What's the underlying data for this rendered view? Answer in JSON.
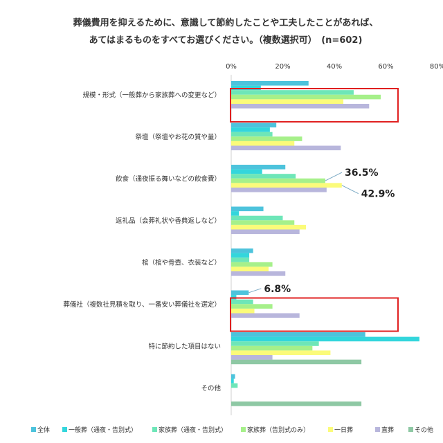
{
  "chart_data": {
    "type": "bar",
    "orientation": "horizontal",
    "title_lines": [
      "葬儀費用を抑えるために、意識して節約したことや工夫したことがあれば、",
      "あてはまるものをすべてお選びください。（複数選択可）　(n=602)"
    ],
    "xlim": [
      0,
      80
    ],
    "xticks": [
      "0%",
      "20%",
      "40%",
      "60%",
      "80%"
    ],
    "grid": false,
    "legend_position": "bottom",
    "categories": [
      "規模・形式（一般葬から家族葬への変更など）",
      "祭壇（祭壇やお花の質や量）",
      "飲食（通夜振る舞いなどの飲食費）",
      "返礼品（会葬礼状や香典返しなど）",
      "棺（棺や骨壺、衣装など）",
      "葬儀社（複数社見積を取り、一番安い葬儀社を選定）",
      "特に節約した項目はない",
      "その他"
    ],
    "series": [
      {
        "name": "全体",
        "color": "#4dc3dc",
        "values": [
          30.0,
          17.5,
          21.0,
          12.5,
          8.5,
          6.8,
          52.0,
          1.5
        ]
      },
      {
        "name": "一般葬（通夜・告別式）",
        "color": "#33d6dc",
        "values": [
          11.5,
          15.0,
          12.0,
          3.0,
          7.0,
          2.0,
          73.0,
          1.0
        ]
      },
      {
        "name": "家族葬（通夜・告別式）",
        "color": "#6ee6b8",
        "values": [
          47.5,
          16.0,
          25.0,
          20.0,
          7.0,
          8.5,
          34.0,
          2.5
        ]
      },
      {
        "name": "家族葬（告別式のみ）",
        "color": "#a6f08a",
        "values": [
          58.0,
          27.5,
          36.5,
          24.5,
          16.0,
          16.0,
          31.5,
          0
        ]
      },
      {
        "name": "一日葬",
        "color": "#fbfb7a",
        "values": [
          43.5,
          24.5,
          42.9,
          29.0,
          14.5,
          9.0,
          38.5,
          0
        ]
      },
      {
        "name": "直葬",
        "color": "#b8b6dc",
        "values": [
          53.5,
          42.5,
          37.0,
          26.5,
          21.0,
          26.5,
          16.0,
          0
        ]
      },
      {
        "name": "その他",
        "color": "#8ec8a4",
        "values": [
          0,
          0,
          0,
          0,
          0,
          0,
          50.5,
          50.5
        ]
      }
    ],
    "annotations": [
      {
        "text": "36.5%",
        "category": 2,
        "series": 3
      },
      {
        "text": "42.9%",
        "category": 2,
        "series": 4
      },
      {
        "text": "6.8%",
        "category": 5,
        "series": 0
      }
    ],
    "highlight_boxes": [
      0,
      5
    ],
    "highlight_color": "#e02020"
  }
}
